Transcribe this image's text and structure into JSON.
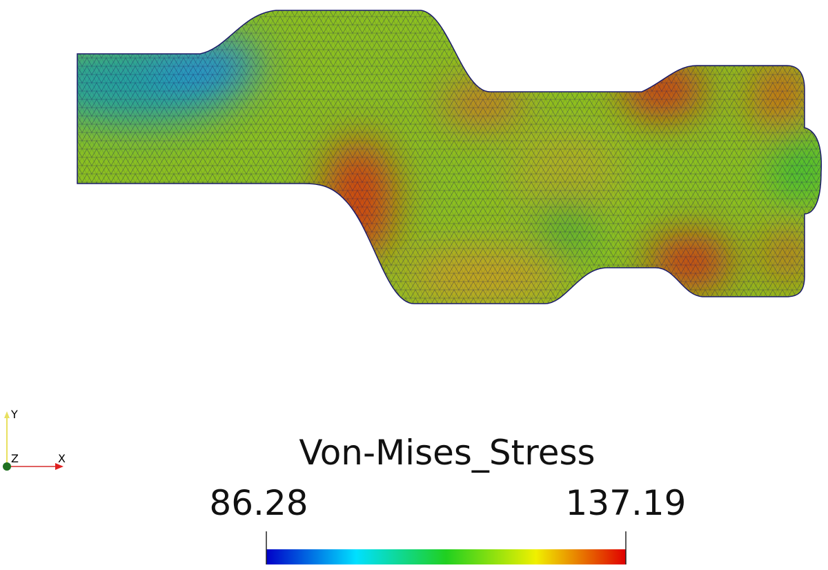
{
  "colorbar": {
    "title": "Von-Mises_Stress",
    "min": 86.28,
    "max": 137.19
  },
  "axes": {
    "y": "Y",
    "z": "Z",
    "x": "X"
  }
}
